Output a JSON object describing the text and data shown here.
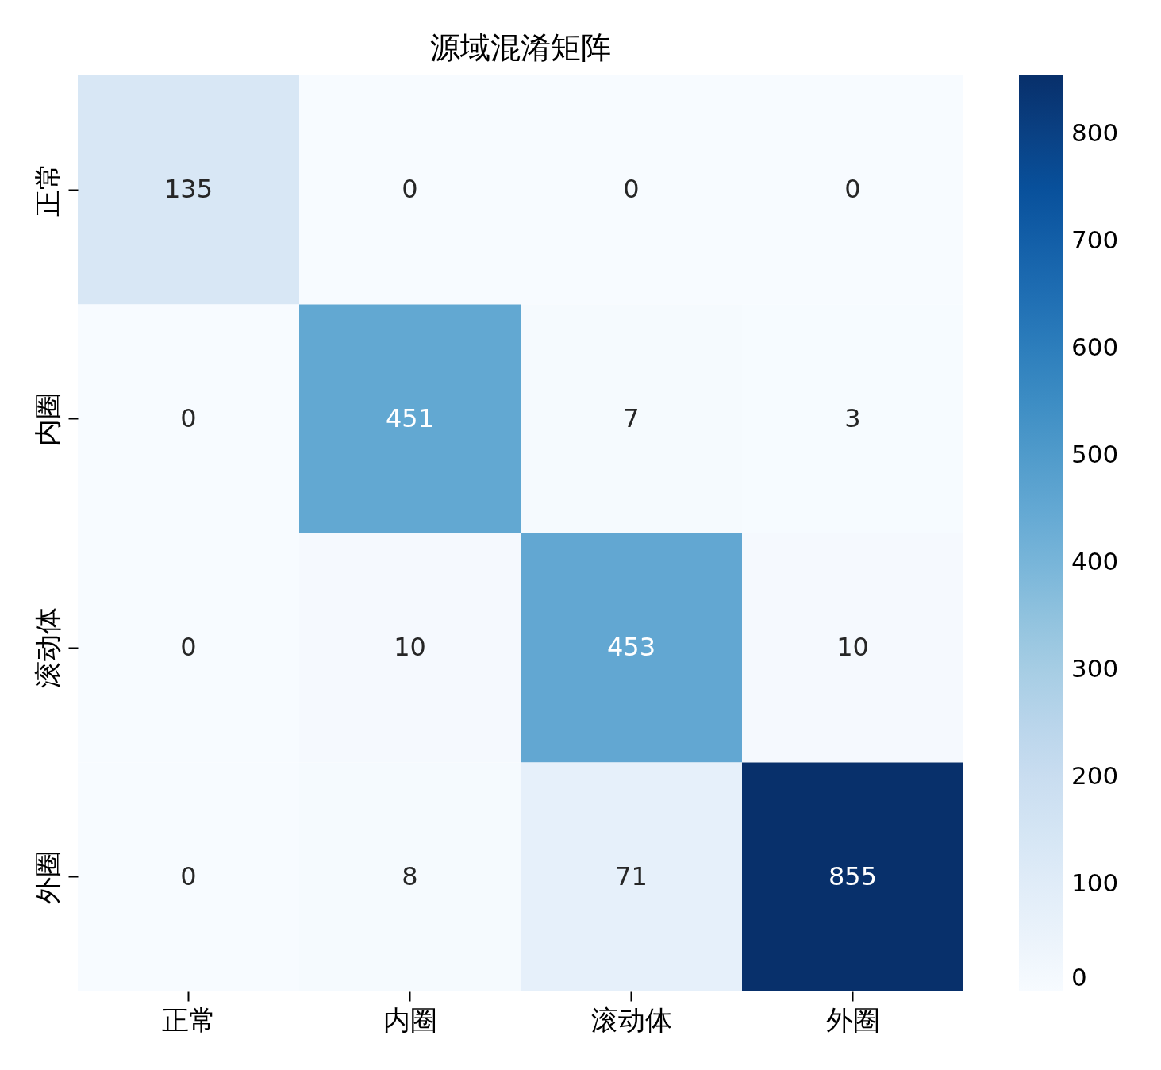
{
  "chart_data": {
    "type": "heatmap",
    "title": "源域混淆矩阵",
    "categories": [
      "正常",
      "内圈",
      "滚动体",
      "外圈"
    ],
    "y_categories": [
      "正常",
      "内圈",
      "滚动体",
      "外圈"
    ],
    "cells": [
      [
        135,
        0,
        0,
        0
      ],
      [
        0,
        451,
        7,
        3
      ],
      [
        0,
        10,
        453,
        10
      ],
      [
        0,
        8,
        71,
        855
      ]
    ],
    "clim": [
      0,
      855
    ],
    "cticks": [
      0,
      100,
      200,
      300,
      400,
      500,
      600,
      700,
      800
    ],
    "data_labels": true
  }
}
